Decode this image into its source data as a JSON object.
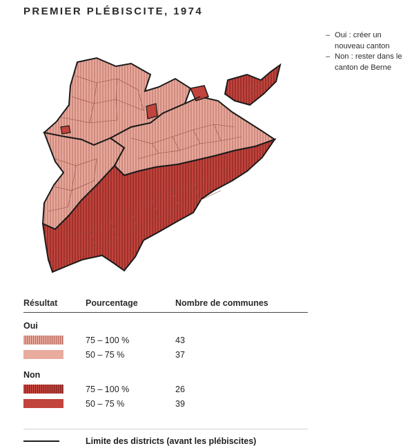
{
  "title": "PREMIER PLÉBISCITE, 1974",
  "notes": [
    {
      "dash": "–",
      "text": "Oui : créer un nouveau canton"
    },
    {
      "dash": "–",
      "text": "Non : rester dans le canton de Berne"
    }
  ],
  "legend": {
    "headers": {
      "result": "Résultat",
      "percent": "Pourcentage",
      "count": "Nombre de communes"
    },
    "groups": [
      {
        "label": "Oui",
        "rows": [
          {
            "percent": "75 – 100 %",
            "count": "43",
            "color": "#e2a397",
            "hatched": true
          },
          {
            "percent": "50 – 75 %",
            "count": "37",
            "color": "#e8ab9e",
            "hatched": false
          }
        ]
      },
      {
        "label": "Non",
        "rows": [
          {
            "percent": "75 – 100 %",
            "count": "26",
            "color": "#b12f2c",
            "hatched": true
          },
          {
            "percent": "50 – 75 %",
            "count": "39",
            "color": "#c1443d",
            "hatched": false
          }
        ]
      }
    ],
    "district_line_label": "Limite des districts (avant les plébiscites)"
  },
  "colors": {
    "oui": "#e6a99c",
    "non": "#bf3c36",
    "border": "#1b1b1b",
    "commune_line": "#7a2420"
  }
}
